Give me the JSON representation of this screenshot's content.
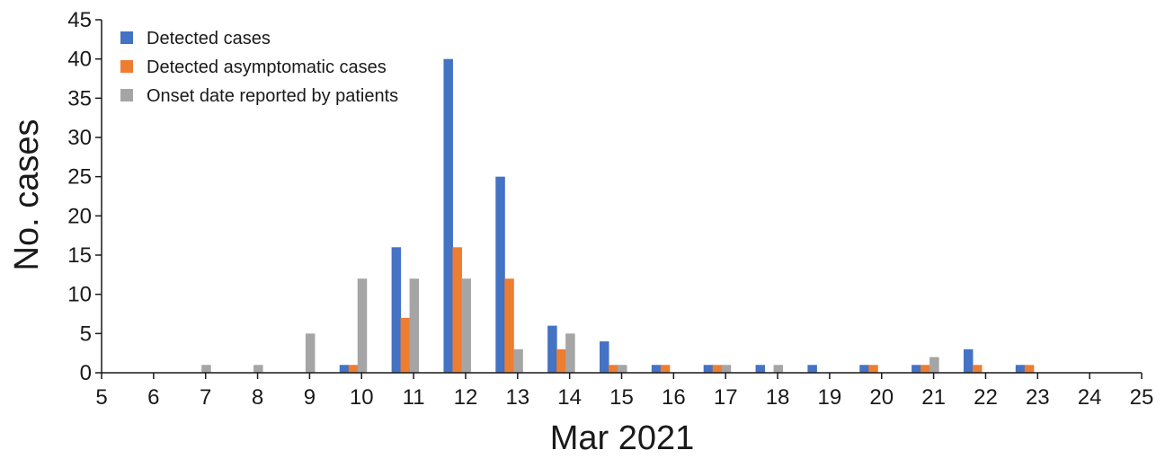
{
  "chart_data": {
    "type": "bar",
    "title": "",
    "xlabel": "Mar 2021",
    "ylabel": "No. cases",
    "x_ticks": [
      5,
      6,
      7,
      8,
      9,
      10,
      11,
      12,
      13,
      14,
      15,
      16,
      17,
      18,
      19,
      20,
      21,
      22,
      23,
      24,
      25
    ],
    "y_ticks": [
      0,
      5,
      10,
      15,
      20,
      25,
      30,
      35,
      40,
      45
    ],
    "xlim": [
      5,
      25
    ],
    "ylim": [
      0,
      45
    ],
    "grid": false,
    "legend_position": "top-left",
    "categories": [
      6,
      7,
      8,
      9,
      10,
      11,
      12,
      13,
      14,
      15,
      16,
      17,
      18,
      19,
      20,
      21,
      22,
      23,
      24
    ],
    "series": [
      {
        "name": "Detected cases",
        "color": "#4472C4",
        "values": [
          0,
          0,
          0,
          0,
          1,
          16,
          40,
          25,
          6,
          4,
          1,
          1,
          1,
          1,
          1,
          1,
          3,
          1,
          0
        ]
      },
      {
        "name": "Detected asymptomatic cases",
        "color": "#ED7D31",
        "values": [
          0,
          0,
          0,
          0,
          1,
          7,
          16,
          12,
          3,
          1,
          1,
          1,
          0,
          0,
          1,
          1,
          1,
          1,
          0
        ]
      },
      {
        "name": "Onset date reported by patients",
        "color": "#A5A5A5",
        "values": [
          0,
          1,
          1,
          5,
          12,
          12,
          12,
          3,
          5,
          1,
          0,
          1,
          1,
          0,
          0,
          2,
          0,
          0,
          0
        ]
      }
    ]
  }
}
